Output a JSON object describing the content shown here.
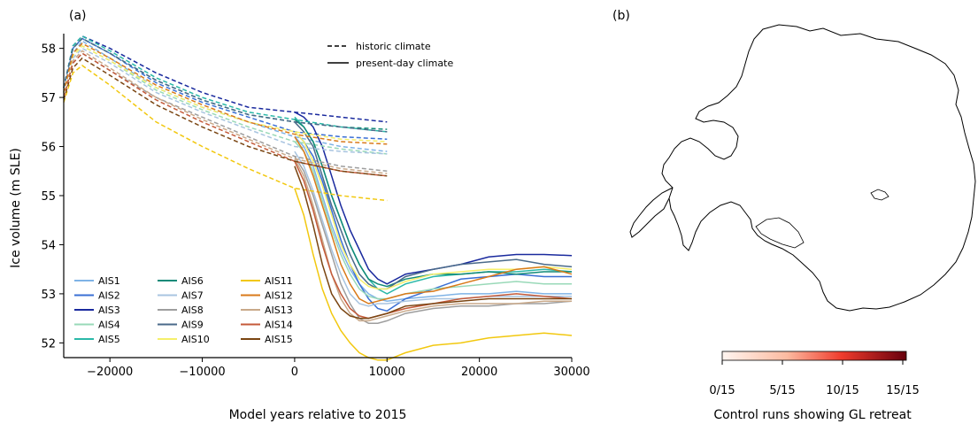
{
  "panel_a": {
    "label": "(a)",
    "chart_data": {
      "type": "line",
      "xlabel": "Model years relative to 2015",
      "ylabel": "Ice volume (m SLE)",
      "xlim": [
        -25000,
        30000
      ],
      "ylim": [
        51.7,
        58.3
      ],
      "xticks": [
        -20000,
        -10000,
        0,
        10000,
        20000,
        30000
      ],
      "xtick_labels": [
        "−20000",
        "−10000",
        "0",
        "10000",
        "20000",
        "30000"
      ],
      "yticks": [
        52,
        53,
        54,
        55,
        56,
        57,
        58
      ],
      "ytick_labels": [
        "52",
        "53",
        "54",
        "55",
        "56",
        "57",
        "58"
      ],
      "grid": false,
      "style_legend": [
        {
          "label": "historic climate",
          "dash": "dashed"
        },
        {
          "label": "present-day climate",
          "dash": "solid"
        }
      ],
      "legend_position": "lower-left",
      "historic_x": [
        -25000,
        -24000,
        -23000,
        -20000,
        -15000,
        -10000,
        -5000,
        0,
        5000,
        10000
      ],
      "present_x": [
        0,
        1000,
        2000,
        3000,
        4000,
        5000,
        6000,
        7000,
        8000,
        9000,
        10000,
        12000,
        15000,
        18000,
        21000,
        24000,
        27000,
        30000
      ],
      "series": [
        {
          "name": "AIS1",
          "color": "#7fb3e6",
          "historic": [
            57.1,
            57.9,
            58.15,
            57.8,
            57.2,
            56.8,
            56.5,
            56.2,
            56.0,
            55.9
          ],
          "present": [
            56.2,
            56.0,
            55.6,
            55.0,
            54.4,
            53.9,
            53.5,
            53.2,
            53.0,
            52.9,
            52.85,
            52.9,
            52.95,
            53.0,
            53.0,
            53.05,
            53.0,
            53.0
          ]
        },
        {
          "name": "AIS2",
          "color": "#3a6fd4",
          "historic": [
            57.1,
            58.0,
            58.2,
            57.9,
            57.3,
            56.9,
            56.6,
            56.3,
            56.2,
            56.15
          ],
          "present": [
            56.3,
            56.1,
            55.8,
            55.3,
            54.7,
            54.1,
            53.6,
            53.2,
            52.9,
            52.7,
            52.65,
            52.9,
            53.1,
            53.3,
            53.35,
            53.4,
            53.35,
            53.35
          ]
        },
        {
          "name": "AIS3",
          "color": "#1a2a9e",
          "historic": [
            57.2,
            58.05,
            58.25,
            58.0,
            57.5,
            57.1,
            56.8,
            56.7,
            56.6,
            56.5
          ],
          "present": [
            56.7,
            56.6,
            56.4,
            56.0,
            55.4,
            54.8,
            54.3,
            53.9,
            53.5,
            53.3,
            53.2,
            53.4,
            53.5,
            53.6,
            53.75,
            53.8,
            53.8,
            53.78
          ]
        },
        {
          "name": "AIS4",
          "color": "#99d9b8",
          "historic": [
            57.1,
            57.85,
            58.05,
            57.75,
            57.15,
            56.75,
            56.4,
            56.1,
            55.95,
            55.85
          ],
          "present": [
            56.1,
            55.9,
            55.5,
            54.9,
            54.3,
            53.8,
            53.4,
            53.1,
            52.95,
            52.9,
            52.9,
            53.0,
            53.1,
            53.15,
            53.2,
            53.25,
            53.2,
            53.2
          ]
        },
        {
          "name": "AIS5",
          "color": "#2ab8a8",
          "historic": [
            57.2,
            58.05,
            58.25,
            57.95,
            57.4,
            57.0,
            56.7,
            56.55,
            56.4,
            56.3
          ],
          "present": [
            56.6,
            56.4,
            56.1,
            55.6,
            55.0,
            54.5,
            54.0,
            53.6,
            53.3,
            53.1,
            53.0,
            53.2,
            53.35,
            53.4,
            53.45,
            53.45,
            53.5,
            53.45
          ]
        },
        {
          "name": "AIS6",
          "color": "#128a78",
          "historic": [
            57.2,
            58.0,
            58.2,
            57.9,
            57.35,
            56.95,
            56.65,
            56.5,
            56.4,
            56.35
          ],
          "present": [
            56.55,
            56.4,
            56.1,
            55.6,
            55.0,
            54.5,
            54.0,
            53.6,
            53.3,
            53.2,
            53.15,
            53.3,
            53.4,
            53.4,
            53.45,
            53.4,
            53.45,
            53.45
          ]
        },
        {
          "name": "AIS7",
          "color": "#a8c4e0",
          "historic": [
            57.1,
            57.8,
            58.0,
            57.7,
            57.1,
            56.7,
            56.35,
            56.0,
            55.9,
            55.85
          ],
          "present": [
            55.9,
            55.6,
            55.1,
            54.5,
            53.9,
            53.4,
            53.0,
            52.8,
            52.75,
            52.8,
            52.8,
            52.85,
            52.9,
            52.9,
            52.95,
            52.95,
            52.95,
            52.95
          ]
        },
        {
          "name": "AIS8",
          "color": "#9e9e9e",
          "historic": [
            57.0,
            57.7,
            57.9,
            57.55,
            57.0,
            56.6,
            56.2,
            55.8,
            55.6,
            55.5
          ],
          "present": [
            55.8,
            55.5,
            55.0,
            54.4,
            53.8,
            53.2,
            52.8,
            52.5,
            52.4,
            52.4,
            52.45,
            52.6,
            52.7,
            52.75,
            52.75,
            52.8,
            52.8,
            52.85
          ]
        },
        {
          "name": "AIS9",
          "color": "#4a6a8a",
          "historic": [
            57.2,
            58.0,
            58.2,
            57.9,
            57.35,
            56.95,
            56.65,
            56.5,
            56.4,
            56.3
          ],
          "present": [
            56.5,
            56.3,
            56.0,
            55.4,
            54.8,
            54.3,
            53.8,
            53.4,
            53.2,
            53.1,
            53.1,
            53.35,
            53.5,
            53.6,
            53.65,
            53.7,
            53.6,
            53.55
          ]
        },
        {
          "name": "AIS10",
          "color": "#f5ef6a",
          "historic": [
            57.1,
            57.85,
            58.05,
            57.75,
            57.2,
            56.8,
            56.5,
            56.3,
            56.15,
            56.1
          ],
          "present": [
            56.3,
            56.1,
            55.7,
            55.2,
            54.6,
            54.0,
            53.6,
            53.3,
            53.15,
            53.1,
            53.1,
            53.25,
            53.4,
            53.45,
            53.5,
            53.5,
            53.55,
            53.5
          ]
        },
        {
          "name": "AIS11",
          "color": "#f2c80f",
          "historic": [
            56.9,
            57.5,
            57.65,
            57.25,
            56.5,
            56.0,
            55.55,
            55.15,
            55.0,
            54.9
          ],
          "present": [
            55.15,
            54.6,
            53.8,
            53.1,
            52.6,
            52.25,
            52.0,
            51.8,
            51.7,
            51.65,
            51.65,
            51.8,
            51.95,
            52.0,
            52.1,
            52.15,
            52.2,
            52.15
          ]
        },
        {
          "name": "AIS12",
          "color": "#d97a1a",
          "historic": [
            57.1,
            57.9,
            58.1,
            57.8,
            57.25,
            56.85,
            56.5,
            56.25,
            56.1,
            56.05
          ],
          "present": [
            56.2,
            55.9,
            55.4,
            54.8,
            54.2,
            53.6,
            53.2,
            52.9,
            52.8,
            52.85,
            52.9,
            53.0,
            53.05,
            53.2,
            53.35,
            53.5,
            53.55,
            53.4
          ]
        },
        {
          "name": "AIS13",
          "color": "#c9a98a",
          "historic": [
            57.0,
            57.75,
            57.95,
            57.6,
            57.0,
            56.55,
            56.15,
            55.75,
            55.55,
            55.45
          ],
          "present": [
            55.75,
            55.4,
            54.8,
            54.1,
            53.4,
            52.9,
            52.6,
            52.45,
            52.45,
            52.5,
            52.55,
            52.65,
            52.75,
            52.8,
            52.8,
            52.8,
            52.85,
            52.85
          ]
        },
        {
          "name": "AIS14",
          "color": "#c45a3a",
          "historic": [
            57.0,
            57.7,
            57.9,
            57.55,
            56.95,
            56.5,
            56.1,
            55.7,
            55.5,
            55.4
          ],
          "present": [
            55.7,
            55.3,
            54.7,
            54.0,
            53.4,
            53.0,
            52.7,
            52.55,
            52.5,
            52.55,
            52.6,
            52.7,
            52.8,
            52.9,
            52.95,
            53.0,
            52.95,
            52.9
          ]
        },
        {
          "name": "AIS15",
          "color": "#7a4512",
          "historic": [
            56.95,
            57.6,
            57.8,
            57.45,
            56.85,
            56.4,
            56.0,
            55.7,
            55.5,
            55.4
          ],
          "present": [
            55.6,
            55.1,
            54.4,
            53.6,
            53.0,
            52.7,
            52.55,
            52.5,
            52.5,
            52.55,
            52.6,
            52.75,
            52.8,
            52.85,
            52.9,
            52.9,
            52.9,
            52.9
          ]
        }
      ]
    }
  },
  "panel_b": {
    "label": "(b)",
    "colorbar": {
      "title": "Control runs showing GL retreat",
      "ticks": [
        "0/15",
        "5/15",
        "10/15",
        "15/15"
      ],
      "color_start": "#fff5f0",
      "color_end": "#67000d"
    }
  }
}
